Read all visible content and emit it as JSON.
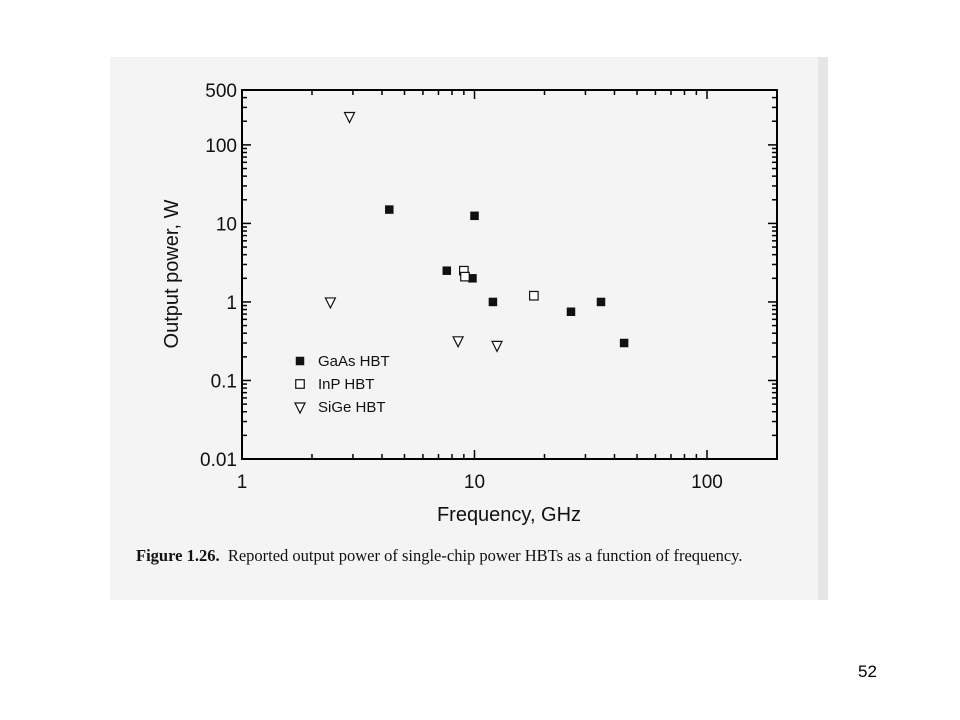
{
  "chart_data": {
    "type": "scatter",
    "xlabel": "Frequency, GHz",
    "ylabel": "Output power, W",
    "xscale": "log",
    "yscale": "log",
    "xlim": [
      1,
      200
    ],
    "ylim": [
      0.01,
      500
    ],
    "x_ticks": [
      1,
      10,
      100
    ],
    "x_tick_labels": [
      "1",
      "10",
      "100"
    ],
    "y_ticks": [
      0.01,
      0.1,
      1,
      10,
      100,
      500
    ],
    "y_tick_labels": [
      "0.01",
      "0.1",
      "1",
      "10",
      "100",
      "500"
    ],
    "grid": false,
    "legend_position": "bottom-left",
    "series": [
      {
        "name": "GaAs HBT",
        "marker": "filled-square",
        "points": [
          {
            "x": 4.3,
            "y": 15
          },
          {
            "x": 7.6,
            "y": 2.5
          },
          {
            "x": 9.8,
            "y": 2
          },
          {
            "x": 10,
            "y": 12.5
          },
          {
            "x": 12,
            "y": 1
          },
          {
            "x": 26,
            "y": 0.75
          },
          {
            "x": 35,
            "y": 1
          },
          {
            "x": 44,
            "y": 0.3
          }
        ]
      },
      {
        "name": "InP HBT",
        "marker": "open-square",
        "points": [
          {
            "x": 9,
            "y": 2.5
          },
          {
            "x": 9.1,
            "y": 2.1
          },
          {
            "x": 18,
            "y": 1.2
          }
        ]
      },
      {
        "name": "SiGe HBT",
        "marker": "open-triangle-down",
        "points": [
          {
            "x": 2.9,
            "y": 230
          },
          {
            "x": 2.4,
            "y": 1
          },
          {
            "x": 8.5,
            "y": 0.32
          },
          {
            "x": 12.5,
            "y": 0.28
          }
        ]
      }
    ]
  },
  "caption": {
    "label": "Figure 1.26.",
    "text": "Reported output power of single-chip power HBTs as a function of frequency."
  },
  "page_number": "52"
}
